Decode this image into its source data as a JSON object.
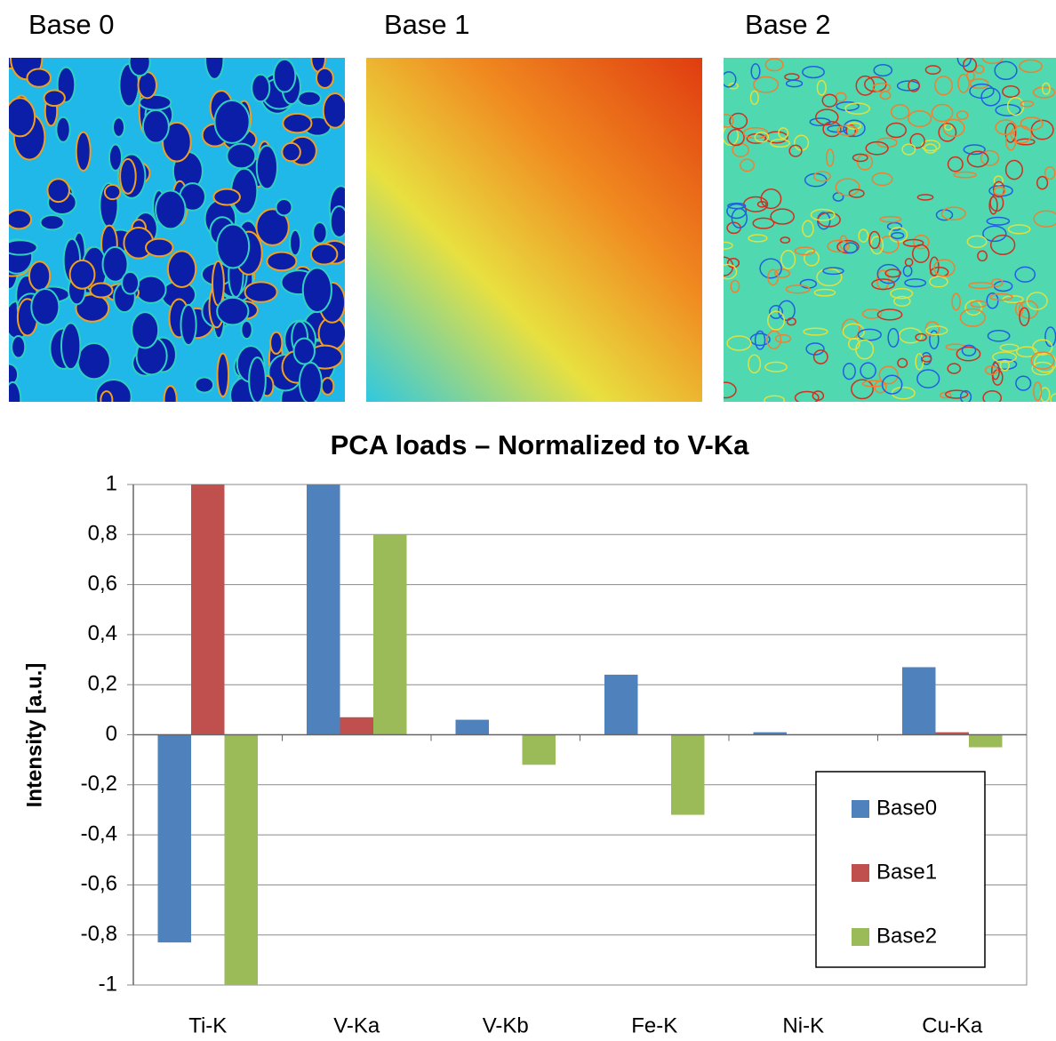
{
  "images": [
    {
      "label": "Base 0"
    },
    {
      "label": "Base 1"
    },
    {
      "label": "Base 2"
    }
  ],
  "chart_data": {
    "type": "bar",
    "title": "PCA loads – Normalized to V-Ka",
    "y_label": "Intensity [a.u.]",
    "categories": [
      "Ti-K",
      "V-Ka",
      "V-Kb",
      "Fe-K",
      "Ni-K",
      "Cu-Ka"
    ],
    "series": [
      {
        "name": "Base0",
        "color": "#4f81bd",
        "values": [
          -0.83,
          1,
          0.06,
          0.24,
          0.01,
          0.27
        ]
      },
      {
        "name": "Base1",
        "color": "#c0504d",
        "values": [
          1,
          0.07,
          0,
          0,
          0,
          0.01
        ]
      },
      {
        "name": "Base2",
        "color": "#9bbb59",
        "values": [
          -1,
          0.8,
          -0.12,
          -0.32,
          0,
          -0.05
        ]
      }
    ],
    "ylim": [
      -1,
      1
    ],
    "yticks": [
      1,
      {
        "value": 0.8,
        "label": "0,8"
      },
      {
        "value": 0.6,
        "label": "0,6"
      },
      {
        "value": 0.4,
        "label": "0,4"
      },
      {
        "value": 0.2,
        "label": "0,2"
      },
      0,
      {
        "value": -0.2,
        "label": "-0,2"
      },
      {
        "value": -0.4,
        "label": "-0,4"
      },
      {
        "value": -0.6,
        "label": "-0,6"
      },
      {
        "value": -0.8,
        "label": "-0,8"
      },
      -1
    ],
    "grid": true,
    "legend": "lower right"
  }
}
